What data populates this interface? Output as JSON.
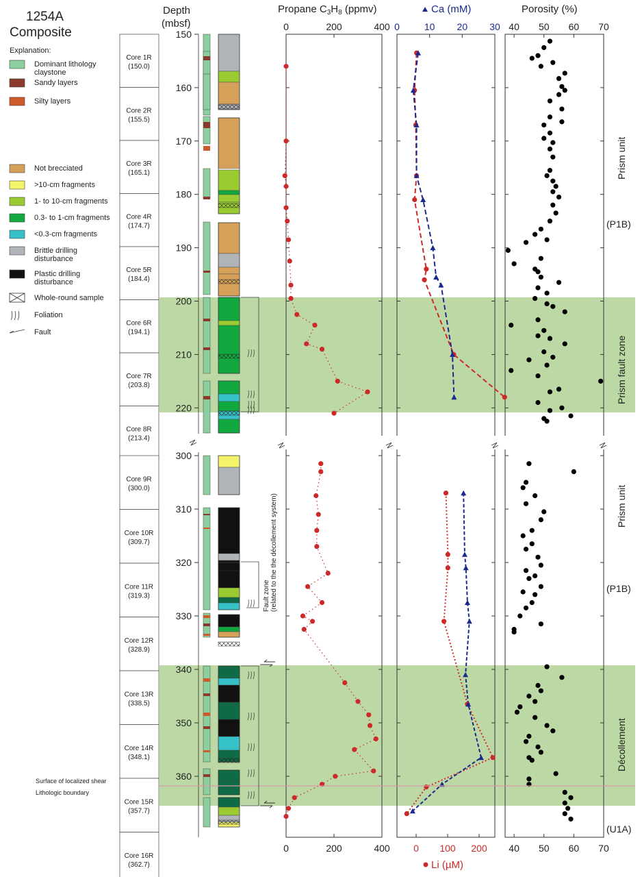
{
  "site": {
    "id": "1254A",
    "label": "Composite"
  },
  "explanation_title": "Explanation:",
  "legend_lithology": [
    {
      "label": [
        "Dominant lithology",
        "claystone"
      ],
      "color": "#8ccf9e"
    },
    {
      "label": [
        "Sandy layers"
      ],
      "color": "#8b3a2c"
    },
    {
      "label": [
        "Silty layers"
      ],
      "color": "#cf5a2c"
    }
  ],
  "legend_fragments": [
    {
      "label": [
        "Not brecciated"
      ],
      "color": "#d4a05a"
    },
    {
      "label": [
        ">10-cm fragments"
      ],
      "color": "#f4f46a"
    },
    {
      "label": [
        "1- to 10-cm fragments"
      ],
      "color": "#9acc32"
    },
    {
      "label": [
        "0.3- to 1-cm fragments"
      ],
      "color": "#12a840"
    },
    {
      "label": [
        "<0.3-cm fragments"
      ],
      "color": "#36c0c8"
    },
    {
      "label": [
        "Brittle drilling",
        "disturbance"
      ],
      "color": "#b0b3b8"
    },
    {
      "label": [
        "Plastic drilling",
        "disturbance"
      ],
      "color": "#111111"
    }
  ],
  "legend_symbols": [
    {
      "label": "Whole-round sample",
      "icon": "whole-round-sample-icon"
    },
    {
      "label": "Foliation",
      "icon": "foliation-icon"
    },
    {
      "label": "Fault",
      "icon": "fault-icon"
    }
  ],
  "depth_axis": {
    "title": [
      "Depth",
      "(mbsf)"
    ],
    "top_ticks": [
      150,
      160,
      170,
      180,
      190,
      200,
      210,
      220
    ],
    "bottom_ticks": [
      300,
      310,
      320,
      330,
      340,
      350,
      360
    ]
  },
  "cores_top": [
    {
      "name": "Core 1R",
      "depth": "(150.0)"
    },
    {
      "name": "Core 2R",
      "depth": "(155.5)"
    },
    {
      "name": "Core 3R",
      "depth": "(165.1)"
    },
    {
      "name": "Core 4R",
      "depth": "(174.7)"
    },
    {
      "name": "Core 5R",
      "depth": "(184.4)"
    },
    {
      "name": "Core 6R",
      "depth": "(194.1)"
    },
    {
      "name": "Core 7R",
      "depth": "(203.8)"
    },
    {
      "name": "Core 8R",
      "depth": "(213.4)"
    }
  ],
  "cores_bottom": [
    {
      "name": "Core 9R",
      "depth": "(300.0)"
    },
    {
      "name": "Core 10R",
      "depth": "(309.7)"
    },
    {
      "name": "Core 11R",
      "depth": "(319.3)"
    },
    {
      "name": "Core 12R",
      "depth": "(328.9)"
    },
    {
      "name": "Core 13R",
      "depth": "(338.5)"
    },
    {
      "name": "Core 14R",
      "depth": "(348.1)"
    },
    {
      "name": "Core 15R",
      "depth": "(357.7)"
    },
    {
      "name": "Core 16R",
      "depth": "(362.7)"
    }
  ],
  "panels": {
    "propane": {
      "title": "Propane C3H8 (ppmv)",
      "ticks": [
        "0",
        "200",
        "400"
      ],
      "color": "#cc2a2a"
    },
    "ca_li": {
      "top_title": "Ca (mM)",
      "top_ticks": [
        "0",
        "10",
        "20",
        "30"
      ],
      "top_color": "#1a2a8c",
      "bottom_title": "Li (µM)",
      "bottom_ticks": [
        "0",
        "100",
        "200"
      ],
      "bottom_color": "#cc2a2a"
    },
    "porosity": {
      "title": "Porosity (%)",
      "ticks": [
        "40",
        "50",
        "60",
        "70"
      ]
    }
  },
  "zones": {
    "unit_top": "Prism unit",
    "p1b_top": "(P1B)",
    "prism_fault_zone": "Prism fault zone",
    "unit_bottom": "Prism unit",
    "p1b_bottom": "(P1B)",
    "decollement": "Décollement",
    "u1a": "(U1A)",
    "zone_color": "#bcd9a5"
  },
  "annotations": {
    "fault_zone": [
      "Fault zone",
      "(related to the the décollement system)"
    ],
    "surface_shear": "Surface of localized shear",
    "lithologic_boundary": "Lithologic boundary"
  },
  "chart_data": {
    "type": "scatter",
    "propane_top": [
      [
        156,
        0
      ],
      [
        170,
        0
      ],
      [
        176.5,
        -5
      ],
      [
        178.5,
        0
      ],
      [
        182.5,
        0
      ],
      [
        185,
        5
      ],
      [
        188.5,
        10
      ],
      [
        192.5,
        15
      ],
      [
        197,
        20
      ],
      [
        199.5,
        20
      ],
      [
        202.5,
        45
      ],
      [
        204.5,
        120
      ],
      [
        208,
        85
      ],
      [
        209,
        150
      ],
      [
        215,
        215
      ],
      [
        217,
        340
      ],
      [
        221,
        200
      ]
    ],
    "propane_bottom": [
      [
        301.5,
        145
      ],
      [
        303,
        145
      ],
      [
        307.5,
        125
      ],
      [
        311,
        135
      ],
      [
        314,
        128
      ],
      [
        317,
        128
      ],
      [
        322,
        175
      ],
      [
        324.5,
        90
      ],
      [
        327.5,
        150
      ],
      [
        330,
        70
      ],
      [
        331,
        110
      ],
      [
        332.5,
        75
      ],
      [
        342.5,
        245
      ],
      [
        346,
        300
      ],
      [
        348.5,
        345
      ],
      [
        350.5,
        350
      ],
      [
        353,
        375
      ],
      [
        355,
        285
      ],
      [
        359,
        365
      ],
      [
        360,
        205
      ],
      [
        361.5,
        150
      ],
      [
        364,
        35
      ],
      [
        366,
        10
      ],
      [
        367.5,
        0
      ]
    ],
    "li_top": [
      [
        153.5,
        50
      ],
      [
        160.5,
        45
      ],
      [
        167,
        48
      ],
      [
        176.5,
        50
      ],
      [
        181,
        45
      ],
      [
        194,
        75
      ],
      [
        196,
        70
      ],
      [
        210,
        145
      ],
      [
        218,
        275
      ]
    ],
    "ca_top": [
      [
        153.5,
        6.5
      ],
      [
        160.5,
        5
      ],
      [
        167,
        6
      ],
      [
        176.5,
        6
      ],
      [
        181,
        8
      ],
      [
        190,
        11
      ],
      [
        195.5,
        12
      ],
      [
        197,
        13.5
      ],
      [
        210,
        17
      ],
      [
        218,
        17.5
      ]
    ],
    "li_bottom": [
      [
        307,
        125
      ],
      [
        318.5,
        130
      ],
      [
        321,
        130
      ],
      [
        331,
        120
      ],
      [
        346.5,
        180
      ],
      [
        356.5,
        245
      ],
      [
        362,
        75
      ],
      [
        367,
        25
      ]
    ],
    "ca_bottom": [
      [
        307,
        170
      ],
      [
        318.5,
        173
      ],
      [
        321,
        176
      ],
      [
        327.5,
        180
      ],
      [
        331,
        185
      ],
      [
        341,
        175
      ],
      [
        346.5,
        182
      ],
      [
        356.5,
        215
      ],
      [
        361.5,
        115
      ],
      [
        366.5,
        40
      ]
    ],
    "porosity_top": [
      [
        151.3,
        52
      ],
      [
        152.5,
        50
      ],
      [
        154,
        48
      ],
      [
        154.5,
        46
      ],
      [
        155.3,
        53
      ],
      [
        156,
        49
      ],
      [
        157.3,
        57
      ],
      [
        158.3,
        55
      ],
      [
        159.8,
        56
      ],
      [
        160.5,
        57
      ],
      [
        161.3,
        55
      ],
      [
        162.5,
        52
      ],
      [
        164,
        56
      ],
      [
        165.5,
        52
      ],
      [
        166.4,
        56
      ],
      [
        167,
        50
      ],
      [
        168.5,
        52
      ],
      [
        169.5,
        50
      ],
      [
        170.3,
        53
      ],
      [
        171.5,
        52
      ],
      [
        173,
        53
      ],
      [
        175.5,
        52
      ],
      [
        176.5,
        51
      ],
      [
        177.5,
        53
      ],
      [
        178.5,
        54
      ],
      [
        179.5,
        53
      ],
      [
        180.5,
        55
      ],
      [
        182,
        53
      ],
      [
        183.5,
        54
      ],
      [
        185,
        52
      ],
      [
        186.5,
        49
      ],
      [
        187.5,
        47
      ],
      [
        188.5,
        51
      ],
      [
        189,
        44
      ],
      [
        190.5,
        38
      ],
      [
        192,
        49
      ],
      [
        193,
        40
      ],
      [
        194,
        47
      ],
      [
        194.5,
        48
      ],
      [
        195.5,
        49
      ],
      [
        196.5,
        55
      ],
      [
        197.5,
        48
      ],
      [
        198.5,
        51
      ],
      [
        199.5,
        47
      ],
      [
        200.5,
        51
      ],
      [
        201,
        53
      ],
      [
        202,
        57
      ],
      [
        203.5,
        48
      ],
      [
        204.5,
        39
      ],
      [
        205.5,
        50
      ],
      [
        206.5,
        48
      ],
      [
        207,
        52
      ],
      [
        208,
        57
      ],
      [
        209.5,
        50
      ],
      [
        210.5,
        53
      ],
      [
        211,
        45
      ],
      [
        212,
        51
      ],
      [
        213,
        39
      ],
      [
        214,
        48
      ],
      [
        215,
        69
      ],
      [
        216.5,
        55
      ],
      [
        217,
        52
      ],
      [
        219,
        48
      ],
      [
        220,
        56
      ],
      [
        220.5,
        52
      ],
      [
        221.5,
        59
      ],
      [
        222,
        50
      ],
      [
        222.5,
        51
      ]
    ],
    "porosity_bottom": [
      [
        301.5,
        45
      ],
      [
        303,
        60
      ],
      [
        305,
        44
      ],
      [
        306,
        43
      ],
      [
        307.5,
        47
      ],
      [
        309,
        44
      ],
      [
        310.5,
        50
      ],
      [
        312,
        49
      ],
      [
        314,
        46
      ],
      [
        315,
        43
      ],
      [
        316.5,
        46
      ],
      [
        317.5,
        44
      ],
      [
        319,
        48
      ],
      [
        320.5,
        49
      ],
      [
        321.5,
        44
      ],
      [
        322.5,
        47
      ],
      [
        323,
        45
      ],
      [
        324.5,
        49
      ],
      [
        325.5,
        43
      ],
      [
        326,
        47
      ],
      [
        327.5,
        46
      ],
      [
        328.5,
        44
      ],
      [
        330,
        42
      ],
      [
        331.5,
        49
      ],
      [
        332.5,
        40
      ],
      [
        333,
        40
      ],
      [
        339.5,
        51
      ],
      [
        341.5,
        56
      ],
      [
        343,
        48
      ],
      [
        344,
        49
      ],
      [
        345,
        45
      ],
      [
        346,
        47
      ],
      [
        347,
        42
      ],
      [
        348,
        41
      ],
      [
        349,
        47
      ],
      [
        350.5,
        51
      ],
      [
        351.5,
        53
      ],
      [
        352.5,
        45
      ],
      [
        353.5,
        44
      ],
      [
        354.5,
        48
      ],
      [
        355.5,
        49
      ],
      [
        356.5,
        45
      ],
      [
        357,
        46
      ],
      [
        359.5,
        54
      ],
      [
        360.5,
        45
      ],
      [
        361.5,
        45
      ],
      [
        363,
        57
      ],
      [
        364,
        59
      ],
      [
        365,
        57
      ],
      [
        366,
        58
      ],
      [
        367,
        57
      ],
      [
        368,
        59
      ]
    ]
  }
}
